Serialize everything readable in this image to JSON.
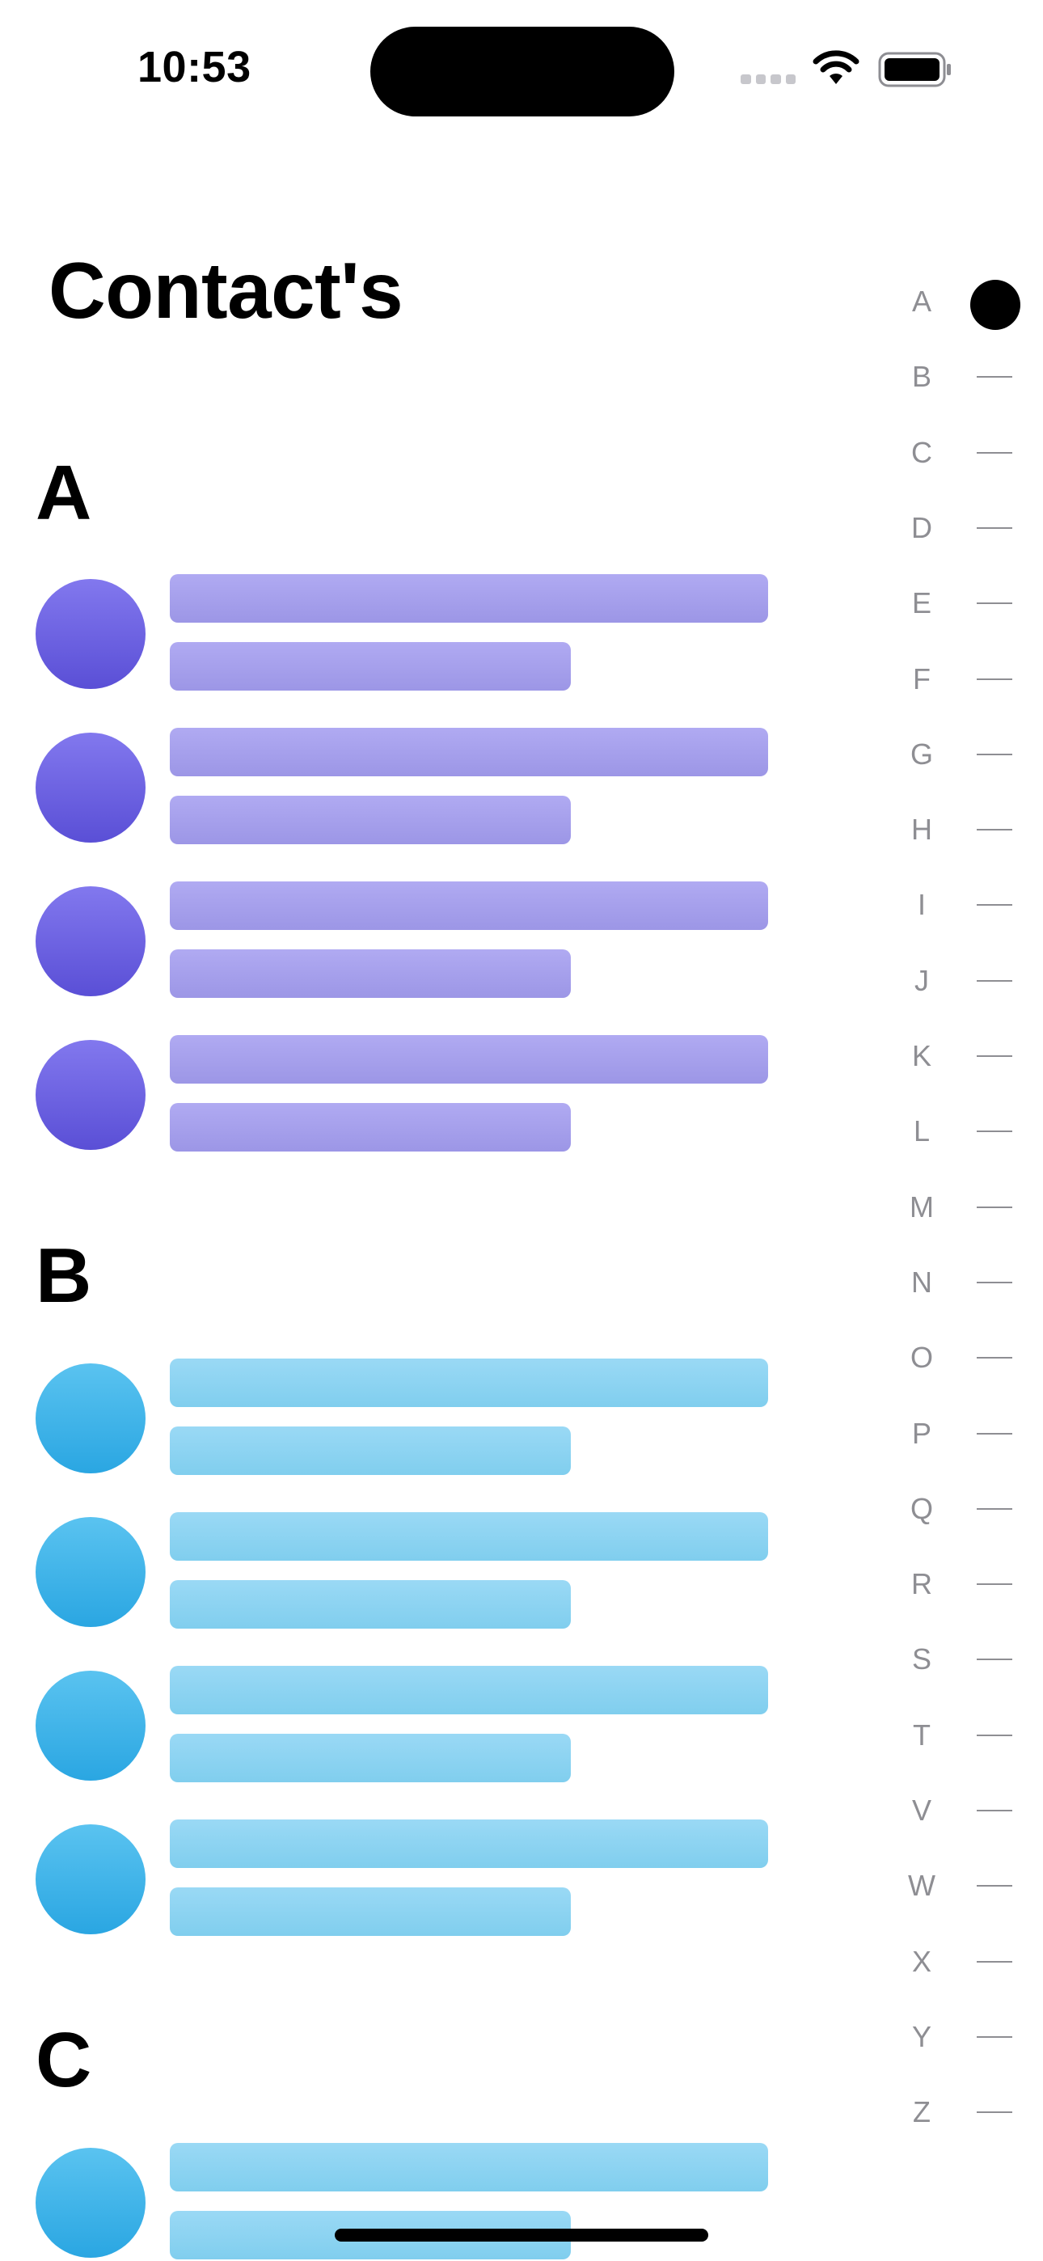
{
  "status_bar": {
    "time": "10:53"
  },
  "page": {
    "title": "Contact's"
  },
  "sections": [
    {
      "letter": "A",
      "color": "purple",
      "rows": 4
    },
    {
      "letter": "B",
      "color": "blue",
      "rows": 4
    },
    {
      "letter": "C",
      "color": "blue",
      "rows": 1
    }
  ],
  "index": {
    "letters": [
      "A",
      "B",
      "C",
      "D",
      "E",
      "F",
      "G",
      "H",
      "I",
      "J",
      "K",
      "L",
      "M",
      "N",
      "O",
      "P",
      "Q",
      "R",
      "S",
      "T",
      "V",
      "W",
      "X",
      "Y",
      "Z"
    ],
    "selected": "A"
  },
  "colors": {
    "purple_avatar": "#6a60e0",
    "purple_bar": "#a7a1ee",
    "blue_avatar": "#3db2ea",
    "blue_bar": "#8dd3f2"
  }
}
